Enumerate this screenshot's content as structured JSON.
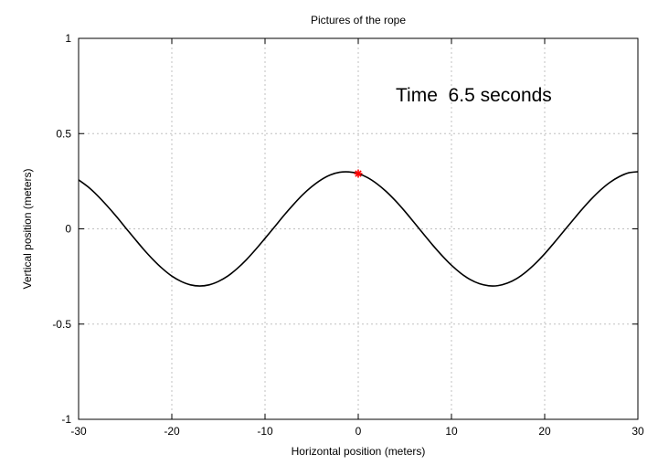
{
  "chart_data": {
    "type": "line",
    "title": "Pictures of the rope",
    "xlabel": "Horizontal position (meters)",
    "ylabel": "Vertical position (meters)",
    "xlim": [
      -30,
      30
    ],
    "ylim": [
      -1,
      1
    ],
    "xticks": [
      -30,
      -20,
      -10,
      0,
      10,
      20,
      30
    ],
    "yticks": [
      -1,
      -0.5,
      0,
      0.5,
      1
    ],
    "xtick_labels": [
      "-30",
      "-20",
      "-10",
      "0",
      "10",
      "20",
      "30"
    ],
    "ytick_labels": [
      "-1",
      "-0.5",
      "0",
      "0.5",
      "1"
    ],
    "grid": true,
    "annotation": "Time  6.5 seconds",
    "series": [
      {
        "color": "#000000",
        "x": [
          -30,
          -29,
          -28,
          -27,
          -26,
          -25,
          -24,
          -23,
          -22,
          -21,
          -20,
          -19,
          -18,
          -17,
          -16,
          -15,
          -14,
          -13,
          -12,
          -11,
          -10,
          -9,
          -8,
          -7,
          -6,
          -5,
          -4,
          -3,
          -2,
          -1,
          0,
          1,
          2,
          3,
          4,
          5,
          6,
          7,
          8,
          9,
          10,
          11,
          12,
          13,
          14,
          15,
          16,
          17,
          18,
          19,
          20,
          21,
          22,
          23,
          24,
          25,
          26,
          27,
          28,
          29,
          30
        ],
        "y": [
          0.257,
          0.221,
          0.176,
          0.124,
          0.068,
          0.008,
          -0.051,
          -0.109,
          -0.162,
          -0.209,
          -0.248,
          -0.276,
          -0.294,
          -0.3,
          -0.294,
          -0.276,
          -0.248,
          -0.209,
          -0.162,
          -0.108,
          -0.05,
          0.009,
          0.069,
          0.125,
          0.177,
          0.221,
          0.257,
          0.283,
          0.297,
          0.299,
          0.29,
          0.269,
          0.237,
          0.196,
          0.147,
          0.092,
          0.033,
          -0.027,
          -0.086,
          -0.141,
          -0.191,
          -0.233,
          -0.266,
          -0.288,
          -0.299,
          -0.298,
          -0.285,
          -0.261,
          -0.226,
          -0.182,
          -0.131,
          -0.074,
          -0.015,
          0.044,
          0.102,
          0.156,
          0.204,
          0.244,
          0.274,
          0.294,
          0.3
        ]
      }
    ],
    "marker": {
      "x": 0,
      "y": 0.29,
      "symbol": "asterisk",
      "color": "#ff0000"
    }
  }
}
